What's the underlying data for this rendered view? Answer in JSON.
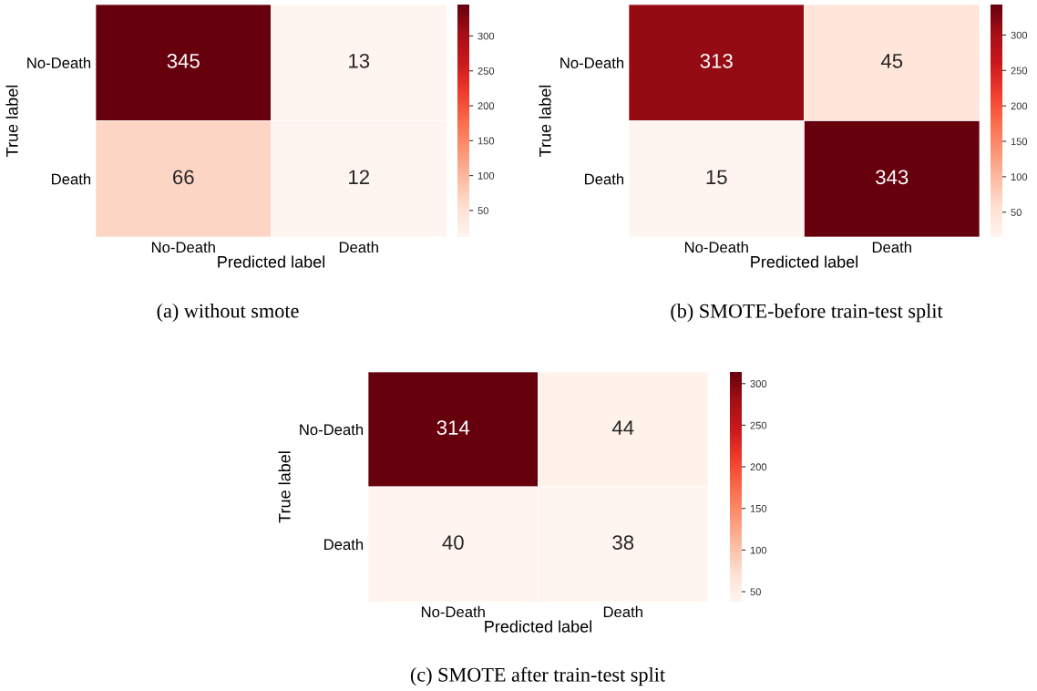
{
  "chart_data": [
    {
      "type": "heatmap",
      "categories": [
        "No-Death",
        "Death"
      ],
      "y_categories": [
        "No-Death",
        "Death"
      ],
      "cells": [
        [
          345,
          13
        ],
        [
          66,
          12
        ]
      ],
      "data_labels": true,
      "xlabel": "Predicted label",
      "ylabel": "True label",
      "clim": [
        12,
        345
      ],
      "cticks": [
        50,
        100,
        150,
        200,
        250,
        300
      ],
      "annotations": [
        "(a) without smote"
      ]
    },
    {
      "type": "heatmap",
      "categories": [
        "No-Death",
        "Death"
      ],
      "y_categories": [
        "No-Death",
        "Death"
      ],
      "cells": [
        [
          313,
          45
        ],
        [
          15,
          343
        ]
      ],
      "data_labels": true,
      "xlabel": "Predicted label",
      "ylabel": "True label",
      "clim": [
        15,
        343
      ],
      "cticks": [
        50,
        100,
        150,
        200,
        250,
        300
      ],
      "annotations": [
        "(b) SMOTE-before train-test split"
      ]
    },
    {
      "type": "heatmap",
      "categories": [
        "No-Death",
        "Death"
      ],
      "y_categories": [
        "No-Death",
        "Death"
      ],
      "cells": [
        [
          314,
          44
        ],
        [
          40,
          38
        ]
      ],
      "data_labels": true,
      "xlabel": "Predicted label",
      "ylabel": "True label",
      "clim": [
        38,
        314
      ],
      "cticks": [
        50,
        100,
        150,
        200,
        250,
        300
      ],
      "annotations": [
        "(c) SMOTE after train-test split"
      ]
    }
  ]
}
